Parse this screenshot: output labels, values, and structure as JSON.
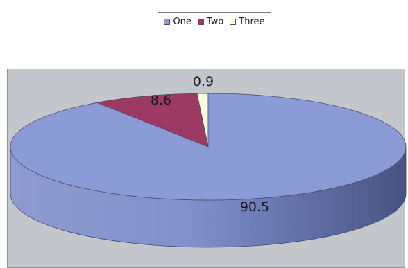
{
  "chart_data": {
    "type": "pie",
    "title": "",
    "legend_position": "top",
    "categories": [
      "One",
      "Two",
      "Three"
    ],
    "values": [
      90.5,
      8.6,
      0.9
    ],
    "data_labels": [
      "90.5",
      "8.6",
      "0.9"
    ],
    "colors": [
      "#8a9bd6",
      "#9c3a63",
      "#fffbd8"
    ],
    "style": "3d"
  }
}
